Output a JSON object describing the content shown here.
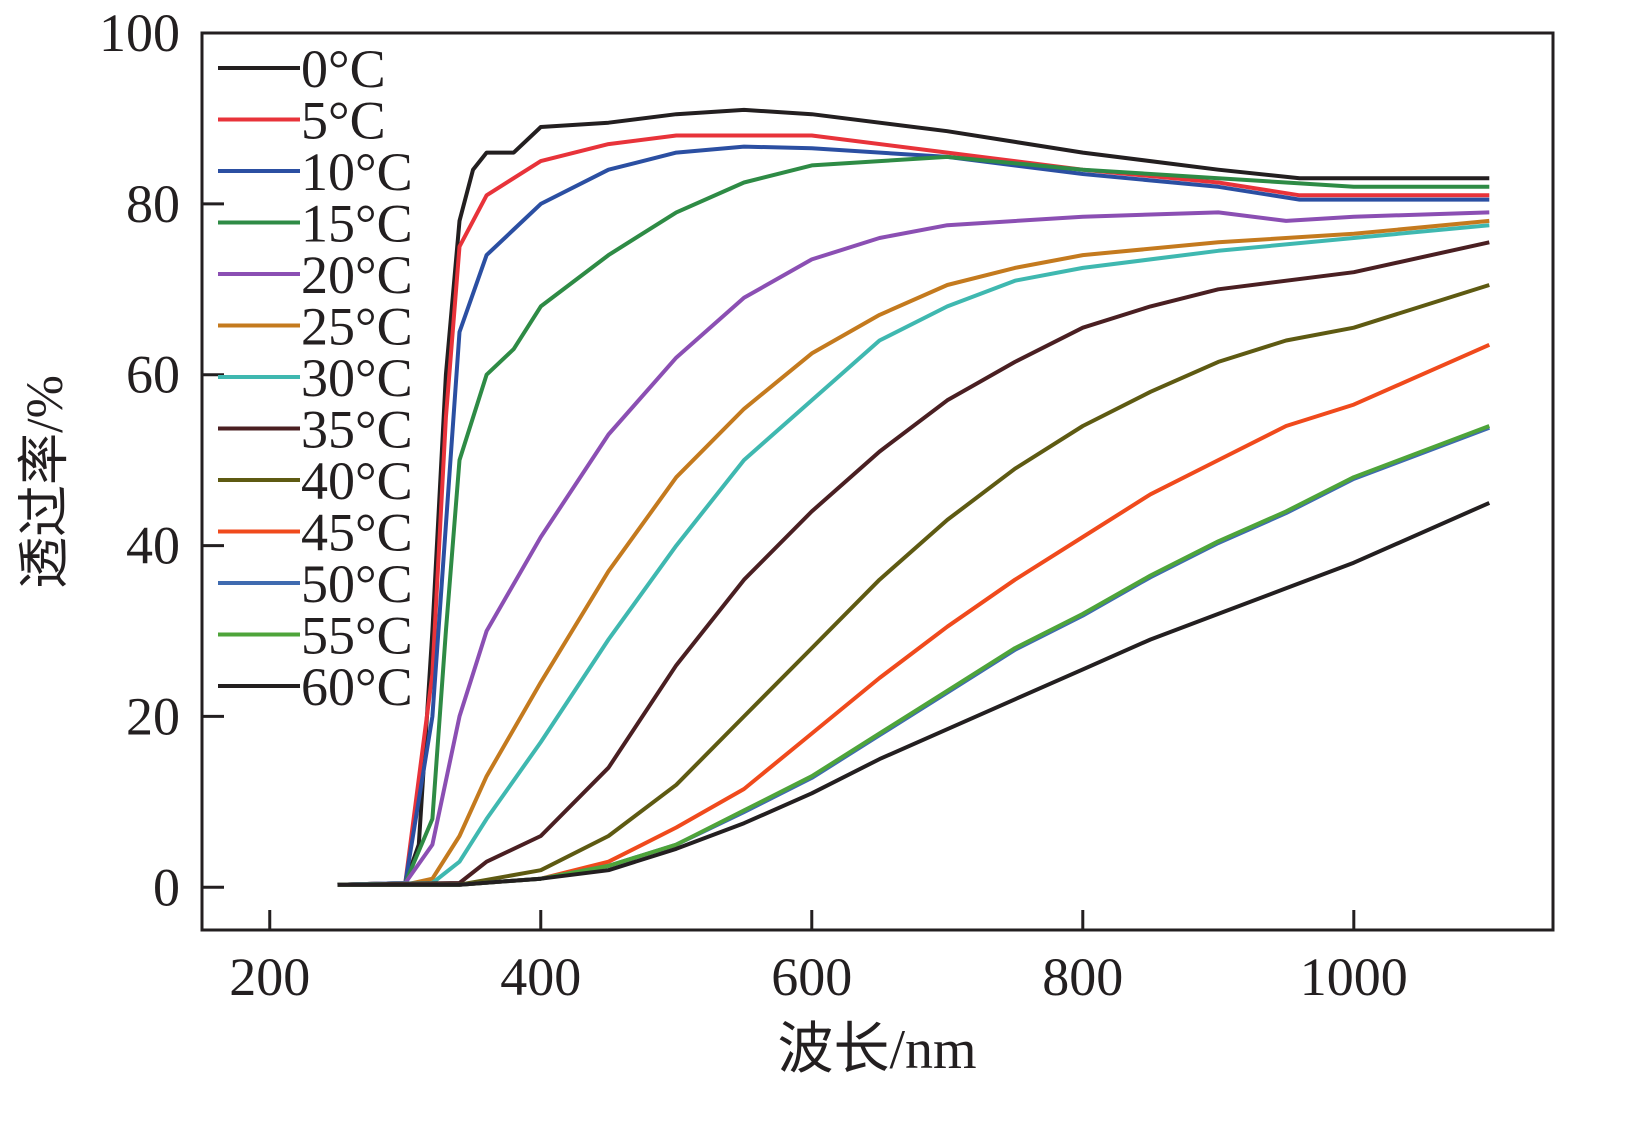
{
  "chart_data": {
    "type": "line",
    "title": "",
    "xlabel": "波长/nm",
    "ylabel": "透过率/%",
    "xlim": [
      150,
      1147
    ],
    "ylim": [
      -5,
      100
    ],
    "xticks": [
      200,
      400,
      600,
      800,
      1000
    ],
    "yticks": [
      0,
      20,
      40,
      60,
      80,
      100
    ],
    "grid": false,
    "legend_position": "top-left",
    "series": [
      {
        "name": "0°C",
        "color": "#231f20",
        "x": [
          250,
          300,
          310,
          320,
          330,
          340,
          350,
          360,
          380,
          400,
          450,
          500,
          550,
          600,
          700,
          800,
          900,
          960,
          1000,
          1100
        ],
        "y": [
          0.3,
          0.5,
          5,
          30,
          60,
          78,
          84,
          86,
          86,
          89,
          89.5,
          90.5,
          91,
          90.5,
          88.5,
          86,
          84,
          83,
          83,
          83
        ]
      },
      {
        "name": "5°C",
        "color": "#e8333a",
        "x": [
          250,
          300,
          320,
          330,
          340,
          360,
          400,
          450,
          500,
          600,
          700,
          800,
          900,
          960,
          1100
        ],
        "y": [
          0.3,
          0.5,
          25,
          55,
          75,
          81,
          85,
          87,
          88,
          88,
          86,
          84,
          82.5,
          81,
          81
        ]
      },
      {
        "name": "10°C",
        "color": "#2b4fa2",
        "x": [
          250,
          300,
          320,
          340,
          360,
          380,
          400,
          450,
          500,
          550,
          600,
          700,
          800,
          900,
          960,
          1100
        ],
        "y": [
          0.3,
          0.5,
          20,
          65,
          74,
          77,
          80,
          84,
          86,
          86.7,
          86.5,
          85.5,
          83.5,
          82,
          80.5,
          80.5
        ]
      },
      {
        "name": "15°C",
        "color": "#2e8b45",
        "x": [
          250,
          300,
          320,
          330,
          340,
          360,
          380,
          400,
          450,
          500,
          550,
          600,
          650,
          700,
          800,
          900,
          1000,
          1100
        ],
        "y": [
          0.3,
          0.5,
          8,
          30,
          50,
          60,
          63,
          68,
          74,
          79,
          82.5,
          84.5,
          85,
          85.5,
          84,
          83,
          82,
          82
        ]
      },
      {
        "name": "20°C",
        "color": "#8b4fb3",
        "x": [
          250,
          300,
          320,
          340,
          360,
          400,
          450,
          500,
          550,
          600,
          650,
          700,
          800,
          900,
          950,
          1000,
          1100
        ],
        "y": [
          0.3,
          0.5,
          5,
          20,
          30,
          41,
          53,
          62,
          69,
          73.5,
          76,
          77.5,
          78.5,
          79,
          78,
          78.5,
          79
        ]
      },
      {
        "name": "25°C",
        "color": "#c47a1e",
        "x": [
          250,
          300,
          320,
          340,
          360,
          400,
          450,
          500,
          550,
          600,
          650,
          700,
          750,
          800,
          900,
          1000,
          1100
        ],
        "y": [
          0.3,
          0.3,
          1,
          6,
          13,
          24,
          37,
          48,
          56,
          62.5,
          67,
          70.5,
          72.5,
          74,
          75.5,
          76.5,
          78
        ]
      },
      {
        "name": "30°C",
        "color": "#3fb8b0",
        "x": [
          250,
          320,
          340,
          360,
          400,
          450,
          500,
          550,
          600,
          650,
          700,
          750,
          800,
          900,
          1000,
          1100
        ],
        "y": [
          0.3,
          0.5,
          3,
          8,
          17,
          29,
          40,
          50,
          57,
          64,
          68,
          71,
          72.5,
          74.5,
          76,
          77.5
        ]
      },
      {
        "name": "35°C",
        "color": "#4a1f22",
        "x": [
          250,
          340,
          360,
          400,
          450,
          500,
          550,
          600,
          650,
          700,
          750,
          800,
          850,
          900,
          1000,
          1100
        ],
        "y": [
          0.3,
          0.5,
          3,
          6,
          14,
          26,
          36,
          44,
          51,
          57,
          61.5,
          65.5,
          68,
          70,
          72,
          75.5
        ]
      },
      {
        "name": "40°C",
        "color": "#5e5a12",
        "x": [
          250,
          340,
          400,
          450,
          500,
          550,
          600,
          650,
          700,
          750,
          800,
          850,
          900,
          950,
          1000,
          1100
        ],
        "y": [
          0.3,
          0.3,
          2,
          6,
          12,
          20,
          28,
          36,
          43,
          49,
          54,
          58,
          61.5,
          64,
          65.5,
          70.5
        ]
      },
      {
        "name": "45°C",
        "color": "#f04a1c",
        "x": [
          250,
          340,
          400,
          450,
          500,
          550,
          600,
          650,
          700,
          750,
          800,
          850,
          900,
          950,
          1000,
          1100
        ],
        "y": [
          0.3,
          0.3,
          1,
          3,
          7,
          11.5,
          18,
          24.5,
          30.5,
          36,
          41,
          46,
          50,
          54,
          56.5,
          63.5
        ]
      },
      {
        "name": "50°C",
        "color": "#3f6bb0",
        "x": [
          250,
          340,
          400,
          450,
          500,
          550,
          600,
          650,
          700,
          750,
          800,
          850,
          900,
          950,
          1000,
          1100
        ],
        "y": [
          0.3,
          0.3,
          1,
          2.5,
          5,
          8.8,
          12.8,
          17.8,
          22.8,
          27.8,
          31.8,
          36.3,
          40.3,
          43.8,
          47.8,
          53.8
        ]
      },
      {
        "name": "55°C",
        "color": "#4ea43a",
        "x": [
          250,
          340,
          400,
          450,
          500,
          550,
          600,
          650,
          700,
          750,
          800,
          850,
          900,
          950,
          1000,
          1100
        ],
        "y": [
          0.3,
          0.3,
          1,
          2.5,
          5,
          9,
          13,
          18,
          23,
          28,
          32,
          36.5,
          40.5,
          44,
          48,
          54
        ]
      },
      {
        "name": "60°C",
        "color": "#231f20",
        "x": [
          250,
          340,
          400,
          450,
          500,
          550,
          600,
          650,
          700,
          750,
          800,
          850,
          900,
          950,
          1000,
          1100
        ],
        "y": [
          0.3,
          0.3,
          1,
          2,
          4.5,
          7.5,
          11,
          15,
          18.5,
          22,
          25.5,
          29,
          32,
          35,
          38,
          45
        ]
      }
    ]
  }
}
